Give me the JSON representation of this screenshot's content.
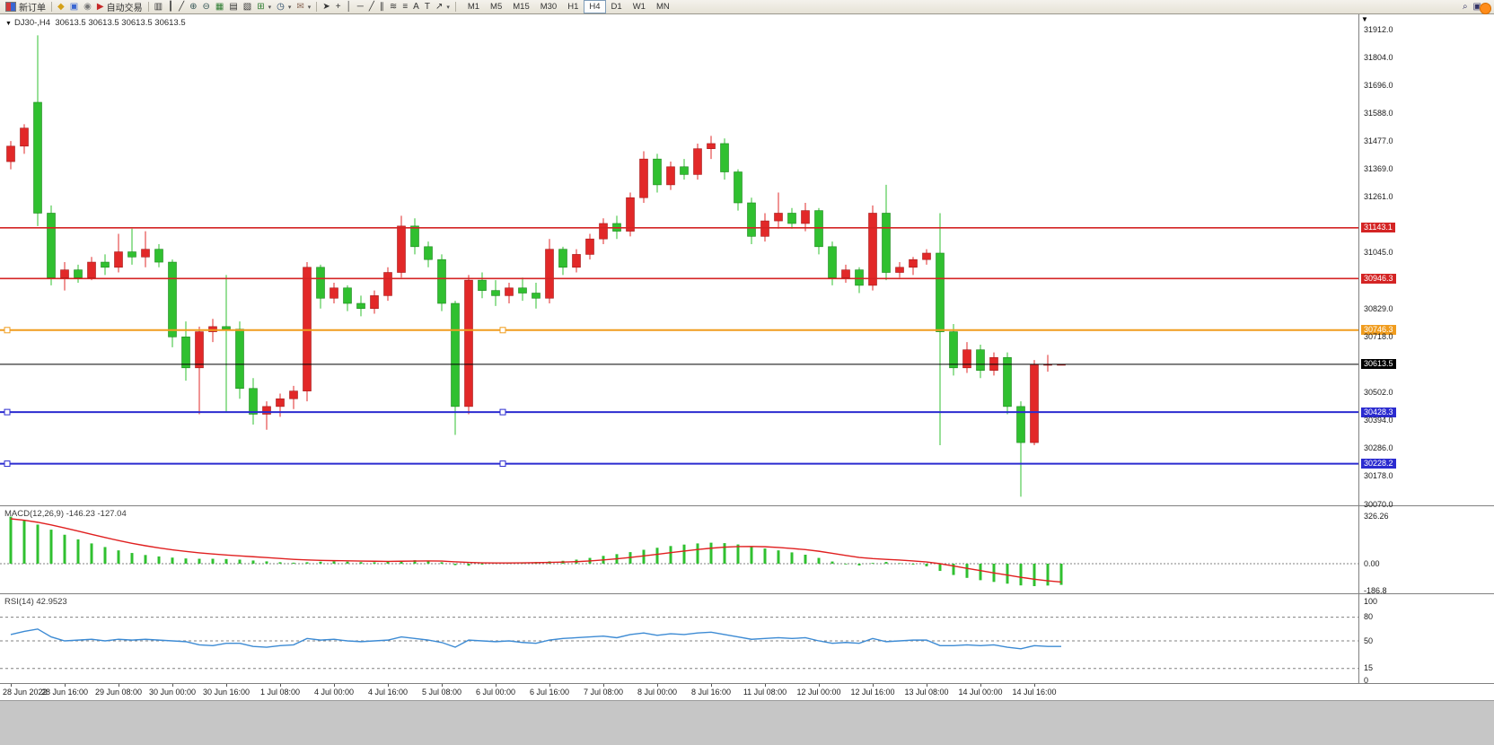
{
  "toolbar": {
    "new_order_label": "新订单",
    "autotrade_label": "自动交易",
    "timeframes": [
      "M1",
      "M5",
      "M15",
      "M30",
      "H1",
      "H4",
      "D1",
      "W1",
      "MN"
    ],
    "active_timeframe": "H4"
  },
  "chart": {
    "title": "DJ30-,H4",
    "ohlc_display": "30613.5 30613.5 30613.5 30613.5"
  },
  "macd_panel": {
    "label": "MACD(12,26,9)",
    "macd_value": "-146.23",
    "signal_value": "-127.04",
    "axis": [
      "326.26",
      "0.00",
      "-186.8"
    ]
  },
  "rsi_panel": {
    "label": "RSI(14)",
    "value": "42.9523",
    "axis": [
      "100",
      "80",
      "50",
      "15",
      "0"
    ],
    "levels": [
      80,
      50,
      15
    ]
  },
  "chart_data": {
    "type": "candlestick",
    "symbol": "DJ30-",
    "timeframe": "H4",
    "ylim": [
      30070,
      31912
    ],
    "colors": {
      "up": "#e22828",
      "down": "#30c030",
      "up_stroke": "#a31a1a",
      "down_stroke": "#1d871d",
      "macd_hist": "#30c030",
      "macd_signal": "#e02020",
      "rsi_line": "#3d8bd4",
      "level_dash": "#808080"
    },
    "candles": [
      [
        31400,
        31480,
        31370,
        31460
      ],
      [
        31460,
        31545,
        31430,
        31530
      ],
      [
        31630,
        31890,
        31150,
        31200
      ],
      [
        31200,
        31230,
        30920,
        30950
      ],
      [
        30950,
        31010,
        30900,
        30980
      ],
      [
        30980,
        31000,
        30930,
        30950
      ],
      [
        30950,
        31030,
        30940,
        31010
      ],
      [
        31010,
        31040,
        30960,
        30990
      ],
      [
        30990,
        31120,
        30970,
        31050
      ],
      [
        31050,
        31140,
        31000,
        31030
      ],
      [
        31030,
        31130,
        30990,
        31060
      ],
      [
        31060,
        31080,
        30990,
        31010
      ],
      [
        31010,
        31020,
        30680,
        30720
      ],
      [
        30720,
        30780,
        30550,
        30600
      ],
      [
        30600,
        30760,
        30420,
        30740
      ],
      [
        30740,
        30790,
        30700,
        30760
      ],
      [
        30760,
        30960,
        30430,
        30750
      ],
      [
        30750,
        30780,
        30480,
        30520
      ],
      [
        30520,
        30560,
        30380,
        30420
      ],
      [
        30420,
        30470,
        30360,
        30450
      ],
      [
        30450,
        30500,
        30410,
        30480
      ],
      [
        30480,
        30530,
        30440,
        30510
      ],
      [
        30510,
        31010,
        30470,
        30990
      ],
      [
        30990,
        31000,
        30830,
        30870
      ],
      [
        30870,
        30930,
        30850,
        30910
      ],
      [
        30910,
        30920,
        30820,
        30850
      ],
      [
        30850,
        30880,
        30800,
        30830
      ],
      [
        30830,
        30900,
        30810,
        30880
      ],
      [
        30880,
        30990,
        30860,
        30970
      ],
      [
        30970,
        31190,
        30950,
        31150
      ],
      [
        31150,
        31180,
        31040,
        31070
      ],
      [
        31070,
        31090,
        30990,
        31020
      ],
      [
        31020,
        31040,
        30820,
        30850
      ],
      [
        30850,
        30860,
        30340,
        30450
      ],
      [
        30450,
        30960,
        30420,
        30940
      ],
      [
        30940,
        30970,
        30870,
        30900
      ],
      [
        30900,
        30940,
        30840,
        30880
      ],
      [
        30880,
        30930,
        30850,
        30910
      ],
      [
        30910,
        30950,
        30860,
        30890
      ],
      [
        30890,
        30930,
        30830,
        30870
      ],
      [
        30870,
        31100,
        30850,
        31060
      ],
      [
        31060,
        31070,
        30960,
        30990
      ],
      [
        30990,
        31060,
        30970,
        31040
      ],
      [
        31040,
        31120,
        31020,
        31100
      ],
      [
        31100,
        31180,
        31080,
        31160
      ],
      [
        31160,
        31190,
        31100,
        31130
      ],
      [
        31130,
        31280,
        31110,
        31260
      ],
      [
        31260,
        31440,
        31240,
        31410
      ],
      [
        31410,
        31430,
        31280,
        31310
      ],
      [
        31310,
        31400,
        31290,
        31380
      ],
      [
        31380,
        31410,
        31330,
        31350
      ],
      [
        31350,
        31470,
        31330,
        31450
      ],
      [
        31450,
        31500,
        31410,
        31470
      ],
      [
        31470,
        31490,
        31330,
        31360
      ],
      [
        31360,
        31370,
        31210,
        31240
      ],
      [
        31240,
        31260,
        31080,
        31110
      ],
      [
        31110,
        31200,
        31090,
        31170
      ],
      [
        31170,
        31280,
        31140,
        31200
      ],
      [
        31200,
        31220,
        31140,
        31160
      ],
      [
        31160,
        31240,
        31130,
        31210
      ],
      [
        31210,
        31220,
        31040,
        31070
      ],
      [
        31070,
        31090,
        30920,
        30950
      ],
      [
        30950,
        31000,
        30930,
        30980
      ],
      [
        30980,
        30990,
        30890,
        30920
      ],
      [
        30920,
        31230,
        30900,
        31200
      ],
      [
        31200,
        31310,
        30940,
        30970
      ],
      [
        30970,
        31010,
        30950,
        30990
      ],
      [
        30990,
        31030,
        30960,
        31020
      ],
      [
        31020,
        31060,
        31000,
        31045
      ],
      [
        31045,
        31200,
        30300,
        30740
      ],
      [
        30740,
        30770,
        30570,
        30600
      ],
      [
        30600,
        30700,
        30580,
        30670
      ],
      [
        30670,
        30690,
        30560,
        30590
      ],
      [
        30590,
        30660,
        30570,
        30640
      ],
      [
        30640,
        30660,
        30420,
        30450
      ],
      [
        30450,
        30470,
        30100,
        30310
      ],
      [
        30310,
        30630,
        30300,
        30613.5
      ],
      [
        30613.5,
        30650,
        30585,
        30613.5
      ],
      [
        30613.5,
        30613.5,
        30613.5,
        30613.5
      ]
    ],
    "time_labels": [
      [
        0,
        "28 Jun 2022"
      ],
      [
        4,
        "28 Jun 16:00"
      ],
      [
        8,
        "29 Jun 08:00"
      ],
      [
        12,
        "30 Jun 00:00"
      ],
      [
        16,
        "30 Jun 16:00"
      ],
      [
        20,
        "1 Jul 08:00"
      ],
      [
        24,
        "4 Jul 00:00"
      ],
      [
        28,
        "4 Jul 16:00"
      ],
      [
        32,
        "5 Jul 08:00"
      ],
      [
        36,
        "6 Jul 00:00"
      ],
      [
        40,
        "6 Jul 16:00"
      ],
      [
        44,
        "7 Jul 08:00"
      ],
      [
        48,
        "8 Jul 00:00"
      ],
      [
        52,
        "8 Jul 16:00"
      ],
      [
        56,
        "11 Jul 08:00"
      ],
      [
        60,
        "12 Jul 00:00"
      ],
      [
        64,
        "12 Jul 16:00"
      ],
      [
        68,
        "13 Jul 08:00"
      ],
      [
        72,
        "14 Jul 00:00"
      ],
      [
        76,
        "14 Jul 16:00"
      ]
    ],
    "hlines": [
      {
        "price": 31143.1,
        "color": "#d42424",
        "width": 1.6,
        "handles": false,
        "name": "resistance-line-1"
      },
      {
        "price": 30946.3,
        "color": "#d42424",
        "width": 1.6,
        "handles": false,
        "name": "resistance-line-2"
      },
      {
        "price": 30746.3,
        "color": "#f09c1e",
        "width": 2,
        "handles": true,
        "name": "pivot-line"
      },
      {
        "price": 30613.5,
        "color": "#000000",
        "width": 1,
        "handles": false,
        "name": "current-price-line"
      },
      {
        "price": 30428.3,
        "color": "#2b2bd0",
        "width": 2,
        "handles": true,
        "name": "support-line-1"
      },
      {
        "price": 30228.2,
        "color": "#2b2bd0",
        "width": 2,
        "handles": true,
        "name": "support-line-2"
      }
    ],
    "price_axis": [
      [
        "31912.0",
        "plain"
      ],
      [
        "31804.0",
        "plain"
      ],
      [
        "31696.0",
        "plain"
      ],
      [
        "31588.0",
        "plain"
      ],
      [
        "31477.0",
        "plain"
      ],
      [
        "31369.0",
        "plain"
      ],
      [
        "31261.0",
        "plain"
      ],
      [
        "31143.1",
        "red"
      ],
      [
        "31045.0",
        "plain"
      ],
      [
        "30946.3",
        "red"
      ],
      [
        "30829.0",
        "plain"
      ],
      [
        "30746.3",
        "orange"
      ],
      [
        "30718.0",
        "plain"
      ],
      [
        "30613.5",
        "black"
      ],
      [
        "30502.0",
        "plain"
      ],
      [
        "30428.3",
        "blue"
      ],
      [
        "30394.0",
        "plain"
      ],
      [
        "30286.0",
        "plain"
      ],
      [
        "30228.2",
        "blue"
      ],
      [
        "30178.0",
        "plain"
      ],
      [
        "30070.0",
        "plain"
      ]
    ],
    "macd": {
      "histogram": [
        325,
        300,
        270,
        235,
        200,
        168,
        140,
        115,
        92,
        74,
        60,
        50,
        42,
        36,
        34,
        34,
        32,
        28,
        22,
        16,
        10,
        7,
        10,
        14,
        16,
        14,
        11,
        10,
        13,
        20,
        24,
        20,
        10,
        -10,
        -14,
        -6,
        2,
        6,
        8,
        11,
        16,
        20,
        28,
        40,
        54,
        66,
        80,
        96,
        110,
        122,
        132,
        140,
        145,
        142,
        133,
        120,
        105,
        92,
        78,
        62,
        40,
        15,
        -5,
        -12,
        5,
        12,
        4,
        -6,
        -18,
        -50,
        -78,
        -98,
        -114,
        -126,
        -138,
        -150,
        -155,
        -151,
        -146.23
      ],
      "signal": [
        310,
        300,
        286,
        268,
        247,
        225,
        203,
        181,
        160,
        141,
        124,
        109,
        96,
        85,
        75,
        67,
        60,
        54,
        48,
        42,
        36,
        30,
        26,
        23,
        21,
        20,
        18,
        17,
        16,
        17,
        18,
        19,
        18,
        13,
        9,
        6,
        5,
        5,
        6,
        7,
        9,
        11,
        14,
        19,
        26,
        34,
        43,
        54,
        65,
        76,
        87,
        98,
        107,
        114,
        118,
        119,
        117,
        112,
        105,
        97,
        86,
        72,
        57,
        43,
        35,
        30,
        25,
        19,
        12,
        0,
        -16,
        -32,
        -48,
        -64,
        -79,
        -94,
        -107,
        -118,
        -127.04
      ]
    },
    "rsi": {
      "values": [
        58,
        62,
        65,
        55,
        50,
        51,
        52,
        50,
        52,
        51,
        52,
        51,
        50,
        49,
        45,
        44,
        47,
        47,
        43,
        42,
        44,
        45,
        53,
        51,
        52,
        50,
        49,
        50,
        51,
        55,
        53,
        51,
        48,
        42,
        51,
        50,
        49,
        50,
        48,
        47,
        51,
        53,
        54,
        55,
        56,
        54,
        58,
        60,
        57,
        59,
        58,
        60,
        61,
        58,
        55,
        52,
        53,
        54,
        53,
        54,
        50,
        47,
        48,
        47,
        53,
        49,
        50,
        51,
        51,
        44,
        44,
        45,
        44,
        45,
        42,
        40,
        44,
        43,
        42.95
      ]
    }
  }
}
